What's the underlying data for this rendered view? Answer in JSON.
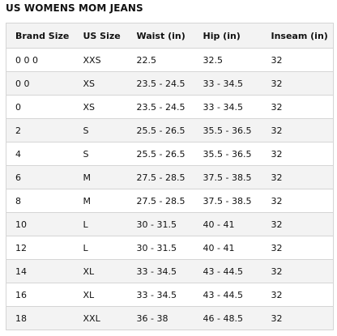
{
  "title": "US WOMENS MOM JEANS",
  "table": {
    "headers": [
      "Brand Size",
      "US Size",
      "Waist (in)",
      "Hip (in)",
      "Inseam (in)"
    ],
    "rows": [
      [
        "0 0 0",
        "XXS",
        "22.5",
        "32.5",
        "32"
      ],
      [
        "0 0",
        "XS",
        "23.5 - 24.5",
        "33 - 34.5",
        "32"
      ],
      [
        "0",
        "XS",
        "23.5 - 24.5",
        "33 - 34.5",
        "32"
      ],
      [
        "2",
        "S",
        "25.5 - 26.5",
        "35.5 - 36.5",
        "32"
      ],
      [
        "4",
        "S",
        "25.5 - 26.5",
        "35.5 - 36.5",
        "32"
      ],
      [
        "6",
        "M",
        "27.5 - 28.5",
        "37.5 - 38.5",
        "32"
      ],
      [
        "8",
        "M",
        "27.5 - 28.5",
        "37.5 - 38.5",
        "32"
      ],
      [
        "10",
        "L",
        "30 - 31.5",
        "40 - 41",
        "32"
      ],
      [
        "12",
        "L",
        "30 - 31.5",
        "40 - 41",
        "32"
      ],
      [
        "14",
        "XL",
        "33 - 34.5",
        "43 - 44.5",
        "32"
      ],
      [
        "16",
        "XL",
        "33 - 34.5",
        "43 - 44.5",
        "32"
      ],
      [
        "18",
        "XXL",
        "36 - 38",
        "46 - 48.5",
        "32"
      ]
    ]
  }
}
